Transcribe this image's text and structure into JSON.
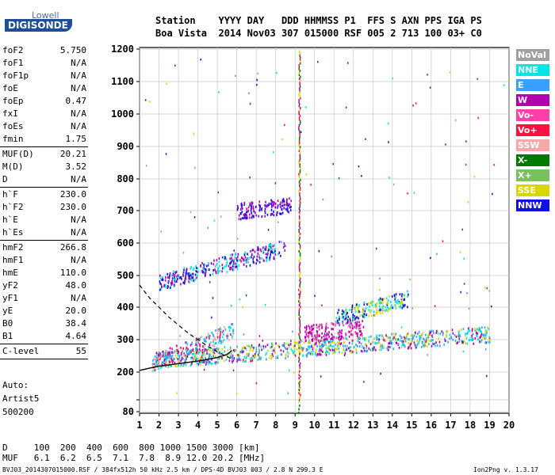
{
  "logo": {
    "brand_top": "Lowell",
    "brand_bottom": "DIGISONDE"
  },
  "header": {
    "line1": "Station    YYYY DAY   DDD HHMMSS P1  FFS S AXN PPS IGA PS",
    "line2": "Boa Vista  2014 Nov03 307 015000 RSF 005 2 713 100 03+ C0"
  },
  "params": [
    {
      "group": [
        {
          "name": "foF2",
          "value": "5.750"
        },
        {
          "name": "foF1",
          "value": "N/A"
        },
        {
          "name": "foF1p",
          "value": "N/A"
        },
        {
          "name": "foE",
          "value": "N/A"
        },
        {
          "name": "foEp",
          "value": "0.47"
        },
        {
          "name": "fxI",
          "value": "N/A"
        },
        {
          "name": "foEs",
          "value": "N/A"
        },
        {
          "name": "fmin",
          "value": "1.75"
        }
      ]
    },
    {
      "group": [
        {
          "name": "MUF(D)",
          "value": "20.21"
        },
        {
          "name": "M(D)",
          "value": "3.52"
        },
        {
          "name": "D",
          "value": "N/A"
        }
      ]
    },
    {
      "group": [
        {
          "name": "h`F",
          "value": "230.0"
        },
        {
          "name": "h`F2",
          "value": "230.0"
        },
        {
          "name": "h`E",
          "value": "N/A"
        },
        {
          "name": "h`Es",
          "value": "N/A"
        }
      ]
    },
    {
      "group": [
        {
          "name": "hmF2",
          "value": "266.8"
        },
        {
          "name": "hmF1",
          "value": "N/A"
        },
        {
          "name": "hmE",
          "value": "110.0"
        },
        {
          "name": "yF2",
          "value": "48.0"
        },
        {
          "name": "yF1",
          "value": "N/A"
        },
        {
          "name": "yE",
          "value": "20.0"
        },
        {
          "name": "B0",
          "value": "38.4"
        },
        {
          "name": "B1",
          "value": "4.64"
        }
      ]
    },
    {
      "group": [
        {
          "name": "C-level",
          "value": "55"
        }
      ]
    }
  ],
  "auto_info": [
    "Auto:",
    "Artist5",
    "500200"
  ],
  "legend": [
    {
      "label": "NoVal",
      "color": "#a0a0a0"
    },
    {
      "label": "NNE",
      "color": "#00e5e5"
    },
    {
      "label": "E",
      "color": "#3aa0ff"
    },
    {
      "label": "W",
      "color": "#b000b0"
    },
    {
      "label": "Vo-",
      "color": "#ff3fa8"
    },
    {
      "label": "Vo+",
      "color": "#ff1040"
    },
    {
      "label": "SSW",
      "color": "#f4a8a8"
    },
    {
      "label": "X-",
      "color": "#007a00"
    },
    {
      "label": "X+",
      "color": "#78c060"
    },
    {
      "label": "SSE",
      "color": "#d8d800"
    },
    {
      "label": "NNW",
      "color": "#1010e0"
    }
  ],
  "distance_table": {
    "d_line": "D     100  200  400  600  800 1000 1500 3000 [km]",
    "muf_line": "MUF   6.1  6.2  6.5  7.1  7.8  8.9 12.0 20.2 [MHz]"
  },
  "footer": {
    "left": "BVJ03_2014307015000.RSF / 384fx512h 50 kHz 2.5 km / DPS-4D BVJ03 003 / 2.8 N 299.3 E",
    "right": "Ion2Png v. 1.3.17"
  },
  "chart_data": {
    "type": "scatter",
    "title": "",
    "xlabel": "",
    "ylabel": "",
    "xlim": [
      1,
      20
    ],
    "ylim": [
      80,
      1200
    ],
    "x_ticks": [
      1,
      2,
      3,
      4,
      5,
      6,
      7,
      8,
      9,
      10,
      11,
      12,
      13,
      14,
      15,
      16,
      17,
      18,
      19,
      20
    ],
    "y_ticks": [
      80,
      100,
      200,
      300,
      400,
      500,
      600,
      700,
      800,
      900,
      1000,
      1100,
      1200
    ],
    "y_tick_labels": [
      "80",
      "",
      "200",
      "300",
      "400",
      "500",
      "600",
      "700",
      "800",
      "900",
      "1000",
      "1100",
      "1200"
    ],
    "y_scale": "nonlinear",
    "grid": true,
    "trace_bands": [
      {
        "name": "F2 O-trace",
        "x_range": [
          1.8,
          19.0
        ],
        "y_center": [
          240,
          320
        ],
        "colors": [
          "E",
          "W",
          "SSE",
          "NNE"
        ]
      },
      {
        "name": "F2 low-frequency spread",
        "x_range": [
          1.6,
          5.8
        ],
        "y_center": [
          230,
          330
        ],
        "colors": [
          "Vo+",
          "W",
          "E",
          "SSW",
          "NNE"
        ]
      },
      {
        "name": "multiple hop",
        "x_range": [
          2.0,
          8.5
        ],
        "y_center": [
          480,
          590
        ],
        "colors": [
          "W",
          "NNW",
          "NNE"
        ]
      },
      {
        "name": "oblique trace",
        "x_range": [
          9.4,
          12.5
        ],
        "y_center": [
          320,
          340
        ],
        "colors": [
          "W",
          "Vo-"
        ]
      },
      {
        "name": "upper spread",
        "x_range": [
          11.0,
          14.8
        ],
        "y_center": [
          370,
          430
        ],
        "colors": [
          "SSE",
          "NNE",
          "NNW"
        ]
      },
      {
        "name": "scattered patch",
        "x_range": [
          6.0,
          8.8
        ],
        "y_center": [
          700,
          720
        ],
        "colors": [
          "NNW",
          "W"
        ]
      }
    ],
    "vertical_interference": [
      {
        "x": 9.2,
        "y_range": [
          80,
          1200
        ],
        "colors": [
          "W",
          "X-",
          "SSE",
          "Vo+"
        ]
      }
    ],
    "model_profile": {
      "description": "",
      "points": [
        [
          1.0,
          205
        ],
        [
          1.5,
          212
        ],
        [
          2.0,
          218
        ],
        [
          2.5,
          222
        ],
        [
          3.0,
          226
        ],
        [
          3.5,
          230
        ],
        [
          4.0,
          234
        ],
        [
          4.5,
          239
        ],
        [
          5.0,
          245
        ],
        [
          5.5,
          254
        ],
        [
          5.75,
          266.8
        ]
      ]
    },
    "dashed_profile": {
      "points": [
        [
          1.0,
          470
        ],
        [
          1.5,
          430
        ],
        [
          2.0,
          400
        ],
        [
          2.5,
          370
        ],
        [
          3.0,
          345
        ],
        [
          3.5,
          320
        ],
        [
          4.0,
          300
        ],
        [
          4.5,
          280
        ],
        [
          5.0,
          262
        ],
        [
          5.5,
          248
        ],
        [
          5.75,
          240
        ]
      ]
    }
  }
}
